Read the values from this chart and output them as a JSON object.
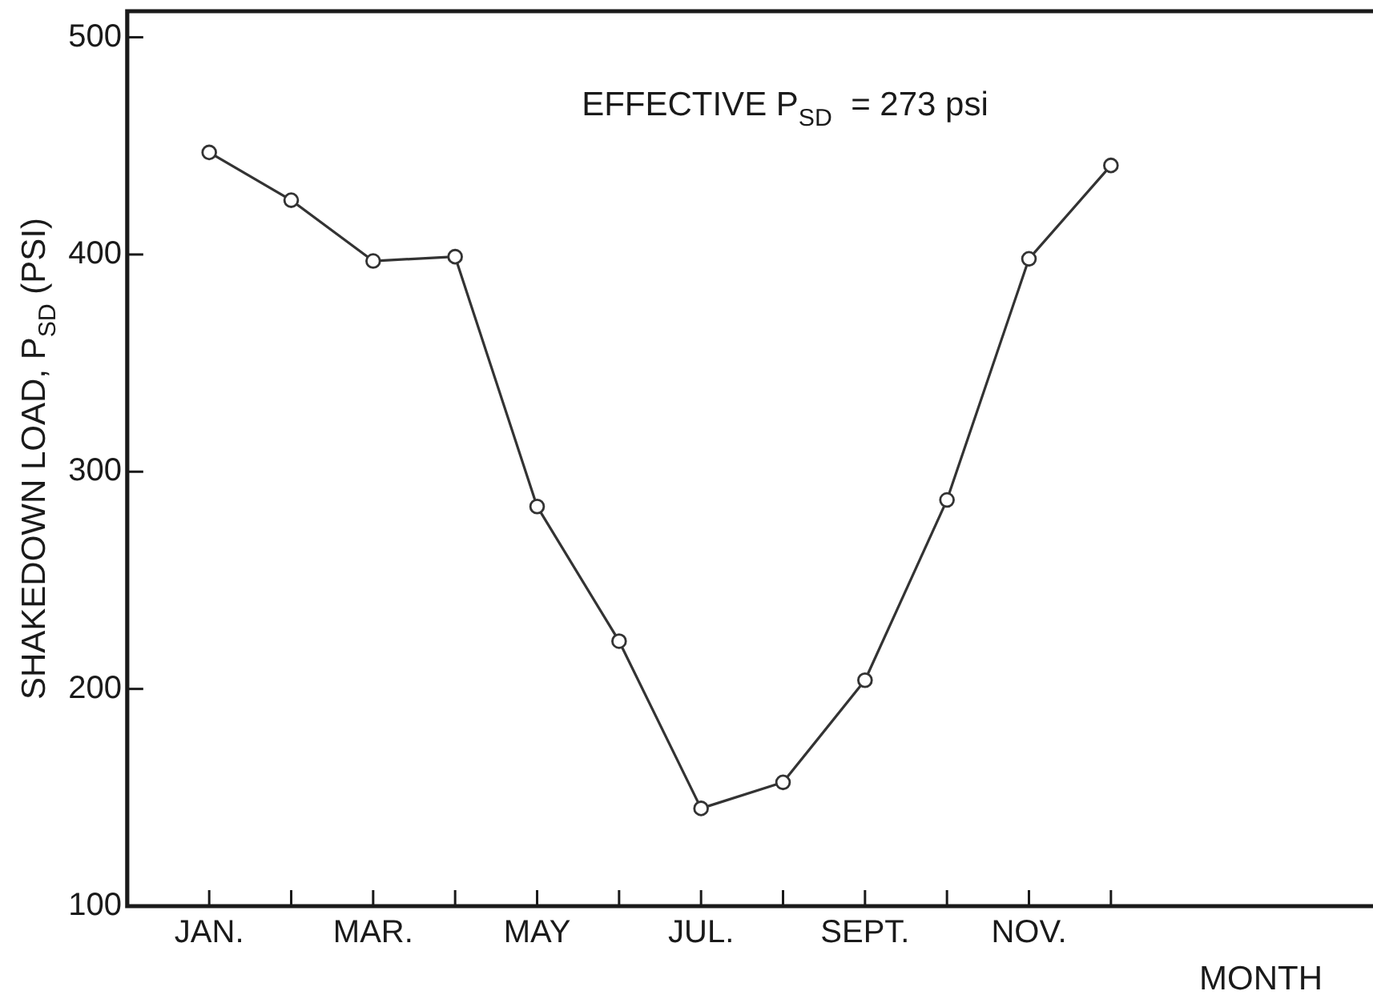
{
  "chart_data": {
    "type": "line",
    "xlabel": "MONTH",
    "ylabel": "SHAKEDOWN LOAD, P$_{SD}$ (PSI)",
    "annotations": [
      "EFFECTIVE P$_{SD}$  = 273 psi"
    ],
    "categories": [
      "JAN.",
      null,
      "MAR.",
      null,
      "MAY",
      null,
      "JUL.",
      null,
      "SEPT.",
      null,
      "NOV.",
      null
    ],
    "values": [
      447,
      425,
      397,
      399,
      284,
      222,
      145,
      157,
      204,
      287,
      398,
      441
    ],
    "color": "#333333",
    "ylim": [
      100,
      512
    ],
    "yticks": [
      100,
      200,
      300,
      400,
      500
    ],
    "grid": false,
    "legend": false,
    "marker": "circle",
    "line_style": "solid"
  }
}
